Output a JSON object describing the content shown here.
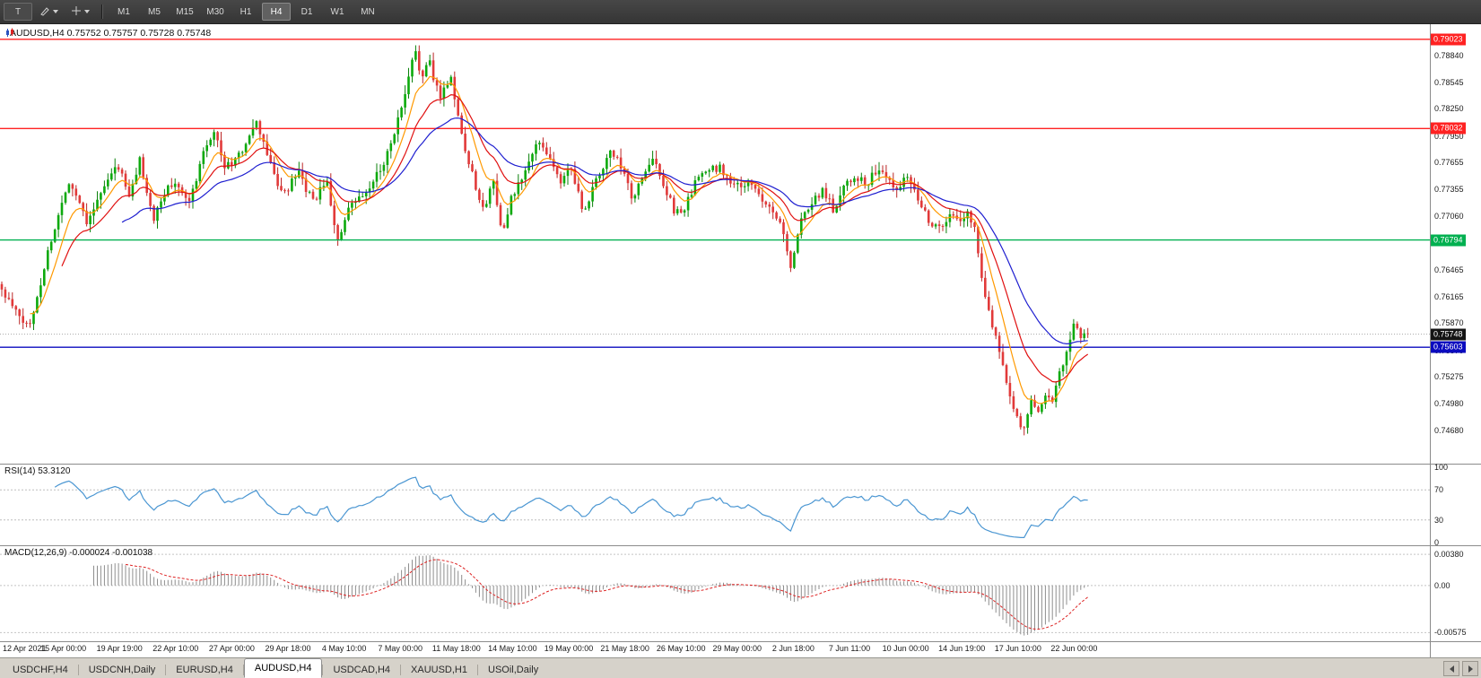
{
  "toolbar": {
    "tool_t_label": "T",
    "timeframes": [
      "M1",
      "M5",
      "M15",
      "M30",
      "H1",
      "H4",
      "D1",
      "W1",
      "MN"
    ],
    "active_timeframe": "H4"
  },
  "chart_title": "AUDUSD,H4 0.75752 0.75757 0.75728 0.75748",
  "rsi_label": "RSI(14) 53.3120",
  "macd_label": "MACD(12,26,9) -0.000024 -0.001038",
  "tabs": {
    "items": [
      "USDCHF,H4",
      "USDCNH,Daily",
      "EURUSD,H4",
      "AUDUSD,H4",
      "USDCAD,H4",
      "XAUUSD,H1",
      "USOil,Daily"
    ],
    "active_index": 3
  },
  "chart_data": {
    "type": "candlestick",
    "symbol": "AUDUSD",
    "timeframe": "H4",
    "quote": {
      "open": 0.75752,
      "high": 0.75757,
      "low": 0.75728,
      "close": 0.75748
    },
    "y_axis": {
      "min": 0.7431,
      "max": 0.7919,
      "ticks": [
        "0.78840",
        "0.78545",
        "0.78250",
        "0.77950",
        "0.77655",
        "0.77355",
        "0.77060",
        "0.76760",
        "0.76465",
        "0.76165",
        "0.75870",
        "0.75570",
        "0.75275",
        "0.74980",
        "0.74680"
      ]
    },
    "x_labels": [
      "12 Apr 2021",
      "15 Apr 00:00",
      "19 Apr 19:00",
      "22 Apr 10:00",
      "27 Apr 00:00",
      "29 Apr 18:00",
      "4 May 10:00",
      "7 May 00:00",
      "11 May 18:00",
      "14 May 10:00",
      "19 May 00:00",
      "21 May 18:00",
      "26 May 10:00",
      "29 May 00:00",
      "2 Jun 18:00",
      "7 Jun 11:00",
      "10 Jun 00:00",
      "14 Jun 19:00",
      "17 Jun 10:00",
      "22 Jun 00:00"
    ],
    "candle_count": 308,
    "shift_ratio": 0.762,
    "seed": 11,
    "noise": 0.0009,
    "up_color": "#0caa0c",
    "down_color": "#e23a3a",
    "wick_up": "#0a810a",
    "wick_down": "#bb2626",
    "price_path": [
      [
        0,
        0.7623
      ],
      [
        3,
        0.7605
      ],
      [
        6,
        0.7588
      ],
      [
        8,
        0.7585
      ],
      [
        11,
        0.7632
      ],
      [
        13,
        0.7666
      ],
      [
        16,
        0.7706
      ],
      [
        19,
        0.7745
      ],
      [
        22,
        0.7722
      ],
      [
        24,
        0.7701
      ],
      [
        27,
        0.7722
      ],
      [
        29,
        0.7738
      ],
      [
        31,
        0.7752
      ],
      [
        33,
        0.7762
      ],
      [
        36,
        0.7726
      ],
      [
        39,
        0.7768
      ],
      [
        41,
        0.7735
      ],
      [
        43,
        0.7701
      ],
      [
        45,
        0.7722
      ],
      [
        47,
        0.7738
      ],
      [
        50,
        0.7742
      ],
      [
        53,
        0.7721
      ],
      [
        55,
        0.7748
      ],
      [
        57,
        0.778
      ],
      [
        60,
        0.7802
      ],
      [
        62,
        0.7775
      ],
      [
        63,
        0.776
      ],
      [
        65,
        0.7765
      ],
      [
        67,
        0.7772
      ],
      [
        69,
        0.7788
      ],
      [
        72,
        0.7808
      ],
      [
        74,
        0.7788
      ],
      [
        76,
        0.7762
      ],
      [
        78,
        0.7742
      ],
      [
        80,
        0.773
      ],
      [
        82,
        0.7744
      ],
      [
        84,
        0.7752
      ],
      [
        86,
        0.7736
      ],
      [
        88,
        0.7722
      ],
      [
        90,
        0.7734
      ],
      [
        92,
        0.7742
      ],
      [
        93,
        0.772
      ],
      [
        95,
        0.7678
      ],
      [
        97,
        0.7698
      ],
      [
        98,
        0.7712
      ],
      [
        100,
        0.7722
      ],
      [
        103,
        0.773
      ],
      [
        105,
        0.7744
      ],
      [
        107,
        0.7758
      ],
      [
        109,
        0.7776
      ],
      [
        111,
        0.78
      ],
      [
        113,
        0.7824
      ],
      [
        114,
        0.784
      ],
      [
        115,
        0.7858
      ],
      [
        116,
        0.7876
      ],
      [
        117,
        0.7888
      ],
      [
        118,
        0.7872
      ],
      [
        119,
        0.7862
      ],
      [
        120,
        0.787
      ],
      [
        121,
        0.7876
      ],
      [
        122,
        0.7858
      ],
      [
        124,
        0.784
      ],
      [
        126,
        0.7854
      ],
      [
        127,
        0.7862
      ],
      [
        128,
        0.7836
      ],
      [
        130,
        0.78
      ],
      [
        131,
        0.7778
      ],
      [
        133,
        0.7755
      ],
      [
        135,
        0.7724
      ],
      [
        136,
        0.7712
      ],
      [
        138,
        0.7734
      ],
      [
        139,
        0.7744
      ],
      [
        141,
        0.77
      ],
      [
        142,
        0.769
      ],
      [
        144,
        0.7724
      ],
      [
        146,
        0.774
      ],
      [
        148,
        0.7756
      ],
      [
        150,
        0.7774
      ],
      [
        152,
        0.779
      ],
      [
        154,
        0.7778
      ],
      [
        155,
        0.7768
      ],
      [
        157,
        0.7752
      ],
      [
        158,
        0.7742
      ],
      [
        160,
        0.7756
      ],
      [
        161,
        0.7762
      ],
      [
        163,
        0.773
      ],
      [
        164,
        0.771
      ],
      [
        166,
        0.7726
      ],
      [
        168,
        0.7744
      ],
      [
        170,
        0.776
      ],
      [
        172,
        0.7776
      ],
      [
        174,
        0.7768
      ],
      [
        175,
        0.776
      ],
      [
        177,
        0.7738
      ],
      [
        178,
        0.7724
      ],
      [
        180,
        0.774
      ],
      [
        181,
        0.7748
      ],
      [
        183,
        0.776
      ],
      [
        184,
        0.7768
      ],
      [
        186,
        0.7754
      ],
      [
        187,
        0.7742
      ],
      [
        189,
        0.7722
      ],
      [
        190,
        0.771
      ],
      [
        192,
        0.7712
      ],
      [
        193,
        0.7716
      ],
      [
        195,
        0.773
      ],
      [
        196,
        0.7742
      ],
      [
        198,
        0.775
      ],
      [
        199,
        0.7756
      ],
      [
        201,
        0.7758
      ],
      [
        203,
        0.776
      ],
      [
        205,
        0.775
      ],
      [
        207,
        0.7738
      ],
      [
        209,
        0.774
      ],
      [
        211,
        0.7742
      ],
      [
        213,
        0.7734
      ],
      [
        215,
        0.7726
      ],
      [
        217,
        0.7718
      ],
      [
        218,
        0.7712
      ],
      [
        220,
        0.7698
      ],
      [
        221,
        0.769
      ],
      [
        222,
        0.7664
      ],
      [
        223,
        0.7644
      ],
      [
        224,
        0.7668
      ],
      [
        226,
        0.77
      ],
      [
        228,
        0.7716
      ],
      [
        229,
        0.7722
      ],
      [
        231,
        0.773
      ],
      [
        232,
        0.7736
      ],
      [
        234,
        0.7722
      ],
      [
        235,
        0.7712
      ],
      [
        237,
        0.773
      ],
      [
        238,
        0.7742
      ],
      [
        240,
        0.7748
      ],
      [
        241,
        0.7752
      ],
      [
        243,
        0.7746
      ],
      [
        244,
        0.774
      ],
      [
        246,
        0.775
      ],
      [
        247,
        0.7756
      ],
      [
        249,
        0.7752
      ],
      [
        250,
        0.7748
      ],
      [
        252,
        0.7742
      ],
      [
        253,
        0.7738
      ],
      [
        255,
        0.7746
      ],
      [
        256,
        0.7752
      ],
      [
        258,
        0.7738
      ],
      [
        259,
        0.7726
      ],
      [
        261,
        0.7712
      ],
      [
        262,
        0.77
      ],
      [
        264,
        0.7695
      ],
      [
        265,
        0.7692
      ],
      [
        267,
        0.77
      ],
      [
        268,
        0.7706
      ],
      [
        270,
        0.7702
      ],
      [
        271,
        0.77
      ],
      [
        273,
        0.771
      ],
      [
        275,
        0.769
      ],
      [
        276,
        0.7668
      ],
      [
        277,
        0.764
      ],
      [
        278,
        0.762
      ],
      [
        279,
        0.76
      ],
      [
        280,
        0.7585
      ],
      [
        281,
        0.757
      ],
      [
        282,
        0.7555
      ],
      [
        283,
        0.754
      ],
      [
        284,
        0.7525
      ],
      [
        285,
        0.751
      ],
      [
        286,
        0.7495
      ],
      [
        287,
        0.748
      ],
      [
        288,
        0.7474
      ],
      [
        289,
        0.747
      ],
      [
        290,
        0.7484
      ],
      [
        291,
        0.75
      ],
      [
        292,
        0.7494
      ],
      [
        293,
        0.7488
      ],
      [
        294,
        0.7498
      ],
      [
        295,
        0.751
      ],
      [
        296,
        0.7506
      ],
      [
        297,
        0.7502
      ],
      [
        298,
        0.7516
      ],
      [
        299,
        0.753
      ],
      [
        300,
        0.754
      ],
      [
        301,
        0.7552
      ],
      [
        302,
        0.7572
      ],
      [
        303,
        0.759
      ],
      [
        304,
        0.7578
      ],
      [
        305,
        0.757
      ],
      [
        306,
        0.7572
      ],
      [
        307,
        0.75748
      ]
    ],
    "levels": [
      {
        "price": 0.79023,
        "label": "0.79023",
        "color": "#ff2222"
      },
      {
        "price": 0.78032,
        "label": "0.78032",
        "color": "#ff2222"
      },
      {
        "price": 0.76794,
        "label": "0.76794",
        "color": "#00b050"
      },
      {
        "price": 0.75603,
        "label": "0.75603",
        "color": "#0b0bbf"
      }
    ],
    "current_price": {
      "value": 0.75748,
      "label": "0.75748",
      "box_color": "#141414",
      "line_color": "#a8a8a8"
    },
    "moving_averages": [
      {
        "period": 8,
        "color": "#ff9900"
      },
      {
        "period": 17,
        "color": "#e01010"
      },
      {
        "period": 34,
        "color": "#1f1fd0"
      }
    ],
    "rsi": {
      "period": 14,
      "value": 53.312,
      "axis": [
        100,
        70,
        30,
        0
      ],
      "guides": [
        70,
        30
      ],
      "color": "#4a96d2",
      "range": [
        0,
        100
      ]
    },
    "macd": {
      "fast": 12,
      "slow": 26,
      "signal": 9,
      "macd_value": -2.4e-05,
      "signal_value": -0.001038,
      "axis": [
        {
          "v": 0.0038,
          "label": "0.00380"
        },
        {
          "v": 0,
          "label": "0.00"
        },
        {
          "v": -0.00575,
          "label": "-0.00575"
        }
      ],
      "range": [
        0.0048,
        -0.0068
      ],
      "hist_color": "#8e8e8e",
      "signal_color": "#dd2222"
    }
  }
}
